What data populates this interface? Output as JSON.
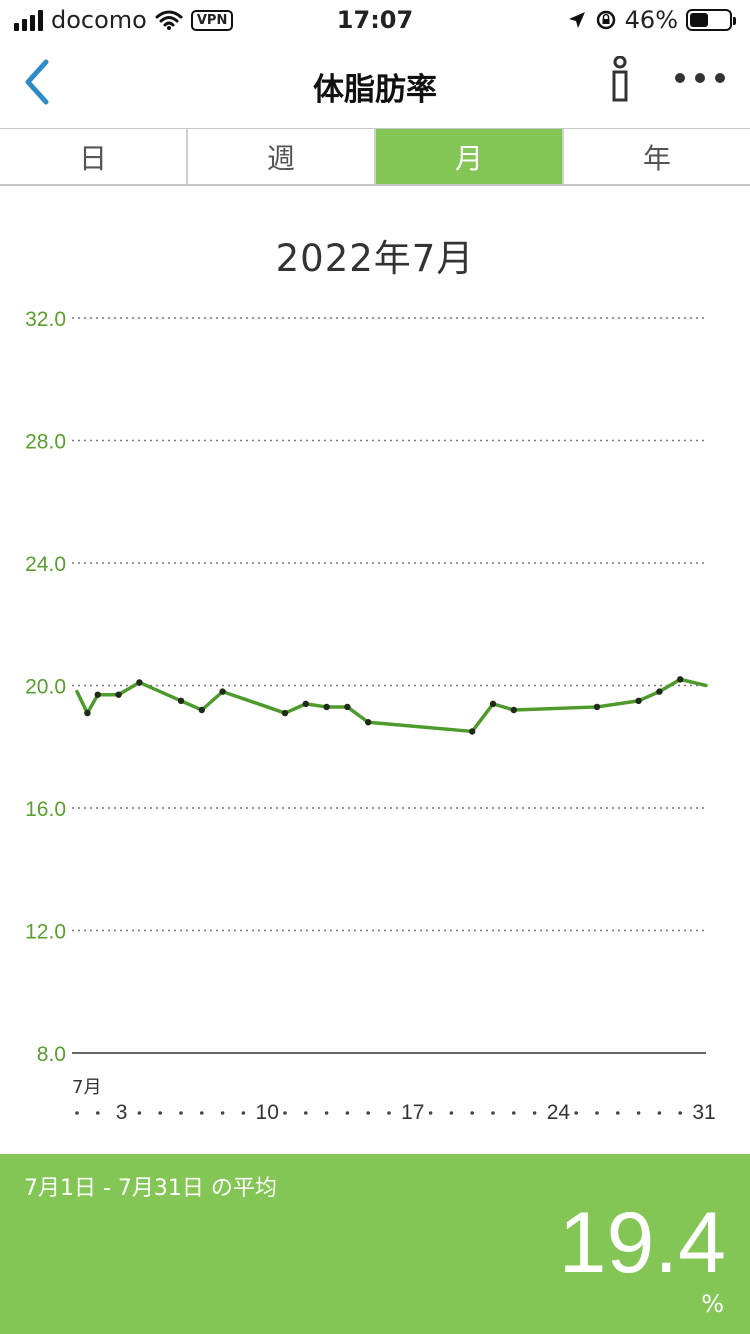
{
  "status_bar": {
    "carrier": "docomo",
    "vpn": "VPN",
    "time": "17:07",
    "battery": "46%",
    "icons": [
      "signal-icon",
      "wifi-icon",
      "location-arrow-icon",
      "rotation-lock-icon",
      "battery-icon"
    ]
  },
  "nav": {
    "title": "体脂肪率",
    "back_icon": "chevron-left-icon",
    "info_icon": "info-icon",
    "more_icon": "more-dots-icon"
  },
  "tabs": [
    {
      "label": "日",
      "active": false
    },
    {
      "label": "週",
      "active": false
    },
    {
      "label": "月",
      "active": true
    },
    {
      "label": "年",
      "active": false
    }
  ],
  "period": "2022年7月",
  "colors": {
    "accent": "#84c655",
    "line": "#4f9a2c",
    "axis_label": "#5a9e2f"
  },
  "chart_data": {
    "type": "line",
    "y_ticks": [
      "32.0",
      "28.0",
      "24.0",
      "20.0",
      "16.0",
      "12.0",
      "8.0"
    ],
    "ylim": [
      8,
      32
    ],
    "xlim": [
      1,
      31
    ],
    "month_label": "7月",
    "x_tick_labels": [
      "3",
      "10",
      "17",
      "24",
      "31"
    ],
    "series": [
      {
        "points": [
          [
            1,
            19.8
          ],
          [
            1.5,
            19.1
          ],
          [
            2,
            19.7
          ],
          [
            3,
            19.7
          ],
          [
            4,
            20.1
          ],
          [
            6,
            19.5
          ],
          [
            7,
            19.2
          ],
          [
            8,
            19.8
          ],
          [
            11,
            19.1
          ],
          [
            12,
            19.4
          ],
          [
            13,
            19.3
          ],
          [
            14,
            19.3
          ],
          [
            15,
            18.8
          ],
          [
            20,
            18.5
          ],
          [
            21,
            19.4
          ],
          [
            22,
            19.2
          ],
          [
            26,
            19.3
          ],
          [
            28,
            19.5
          ],
          [
            29,
            19.8
          ],
          [
            30,
            20.2
          ],
          [
            31.5,
            20.0
          ]
        ]
      }
    ]
  },
  "footer": {
    "range": "7月1日 - 7月31日 の平均",
    "value": "19.4",
    "unit": "%"
  }
}
